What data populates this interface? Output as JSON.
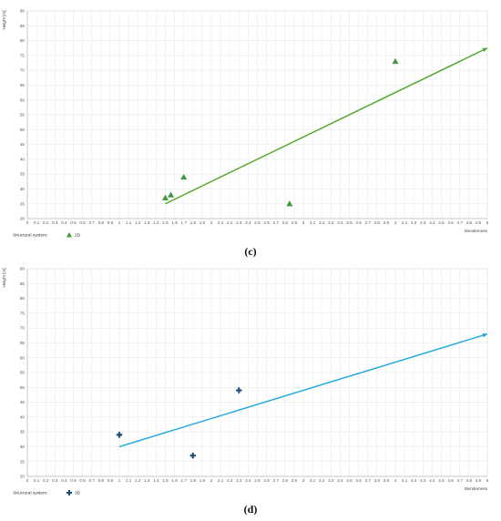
{
  "chart_data": [
    {
      "type": "scatter",
      "panel_label": "(c)",
      "ylabel": "Height [m]",
      "xlabel": "Slenderness",
      "xlim": [
        0,
        5
      ],
      "ylim": [
        20,
        90
      ],
      "x_ticks": [
        0,
        0.1,
        0.2,
        0.3,
        0.4,
        0.5,
        0.6,
        0.7,
        0.8,
        0.9,
        1,
        1.1,
        1.2,
        1.3,
        1.4,
        1.5,
        1.6,
        1.7,
        1.8,
        1.9,
        2,
        2.1,
        2.2,
        2.3,
        2.4,
        2.5,
        2.6,
        2.7,
        2.8,
        2.9,
        3,
        3.1,
        3.2,
        3.3,
        3.4,
        3.5,
        3.6,
        3.7,
        3.8,
        3.9,
        4,
        4.1,
        4.2,
        4.3,
        4.4,
        4.5,
        4.6,
        4.7,
        4.8,
        4.9,
        5
      ],
      "y_ticks": [
        20,
        25,
        30,
        35,
        40,
        45,
        50,
        55,
        60,
        65,
        70,
        75,
        80,
        85,
        90
      ],
      "grid": true,
      "legend": {
        "title": "Structural system:",
        "placement": "bottom-left"
      },
      "series": [
        {
          "name": "2D",
          "marker": "triangle",
          "color": "#3f9a3a",
          "points": [
            {
              "x": 1.5,
              "y": 27
            },
            {
              "x": 1.56,
              "y": 28
            },
            {
              "x": 1.7,
              "y": 34
            },
            {
              "x": 2.85,
              "y": 25
            },
            {
              "x": 4.0,
              "y": 73
            }
          ],
          "trend": {
            "color": "#4aa625",
            "from": {
              "x": 1.5,
              "y": 25
            },
            "to": {
              "x": 5.0,
              "y": 77.5
            }
          }
        }
      ]
    },
    {
      "type": "scatter",
      "panel_label": "(d)",
      "ylabel": "Height [m]",
      "xlabel": "Slenderness",
      "xlim": [
        0,
        5
      ],
      "ylim": [
        20,
        90
      ],
      "x_ticks": [
        0,
        0.1,
        0.2,
        0.3,
        0.4,
        0.5,
        0.6,
        0.7,
        0.8,
        0.9,
        1,
        1.1,
        1.2,
        1.3,
        1.4,
        1.5,
        1.6,
        1.7,
        1.8,
        1.9,
        2,
        2.1,
        2.2,
        2.3,
        2.4,
        2.5,
        2.6,
        2.7,
        2.8,
        2.9,
        3,
        3.1,
        3.2,
        3.3,
        3.4,
        3.5,
        3.6,
        3.7,
        3.8,
        3.9,
        4,
        4.1,
        4.2,
        4.3,
        4.4,
        4.5,
        4.6,
        4.7,
        4.8,
        4.9,
        5
      ],
      "y_ticks": [
        20,
        25,
        30,
        35,
        40,
        45,
        50,
        55,
        60,
        65,
        70,
        75,
        80,
        85,
        90
      ],
      "grid": true,
      "legend": {
        "title": "Structural system:",
        "placement": "bottom-left"
      },
      "series": [
        {
          "name": "3D",
          "marker": "plus",
          "color": "#1d4f78",
          "points": [
            {
              "x": 1.0,
              "y": 34
            },
            {
              "x": 1.8,
              "y": 27
            },
            {
              "x": 2.3,
              "y": 49
            }
          ],
          "trend": {
            "color": "#1aa8dc",
            "from": {
              "x": 1.0,
              "y": 30
            },
            "to": {
              "x": 5.0,
              "y": 68
            }
          }
        }
      ]
    }
  ]
}
